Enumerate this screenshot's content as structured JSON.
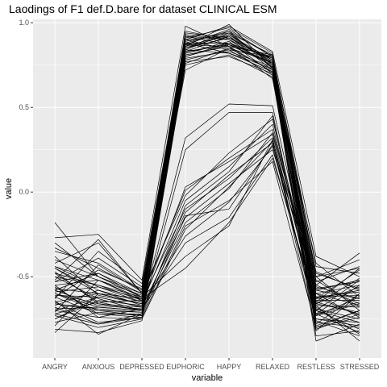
{
  "chart_data": {
    "type": "line",
    "title": "Laodings of F1 def.D.bare for dataset CLINICAL ESM",
    "xlabel": "variable",
    "ylabel": "value",
    "categories": [
      "ANGRY",
      "ANXIOUS",
      "DEPRESSED",
      "EUPHORIC",
      "HAPPY",
      "RELAXED",
      "RESTLESS",
      "STRESSED"
    ],
    "ylim": [
      -0.98,
      1.02
    ],
    "yticks": [
      -0.5,
      0.0,
      0.5,
      1.0
    ],
    "ytick_labels": [
      "-0.5",
      "0.0",
      "0.5",
      "1.0"
    ],
    "grid": true,
    "legend": "none",
    "colors": {
      "panel": "#ebebeb",
      "grid": "#ffffff",
      "line": "#000000"
    },
    "series": [
      {
        "values": [
          -0.18,
          -0.5,
          -0.62,
          0.85,
          0.93,
          0.78,
          -0.52,
          -0.68
        ]
      },
      {
        "values": [
          -0.27,
          -0.25,
          -0.52,
          0.98,
          0.86,
          0.67,
          -0.62,
          -0.73
        ]
      },
      {
        "values": [
          -0.33,
          -0.45,
          -0.58,
          0.92,
          0.9,
          0.74,
          -0.47,
          -0.58
        ]
      },
      {
        "values": [
          -0.38,
          -0.61,
          -0.66,
          0.88,
          0.95,
          0.8,
          -0.7,
          -0.81
        ]
      },
      {
        "values": [
          -0.42,
          -0.3,
          -0.6,
          0.84,
          0.82,
          0.71,
          -0.55,
          -0.36
        ]
      },
      {
        "values": [
          -0.47,
          -0.66,
          -0.7,
          0.91,
          0.97,
          0.82,
          -0.76,
          -0.85
        ]
      },
      {
        "values": [
          -0.5,
          -0.55,
          -0.64,
          0.8,
          0.88,
          0.76,
          -0.65,
          -0.45
        ]
      },
      {
        "values": [
          -0.53,
          -0.39,
          -0.56,
          0.86,
          0.99,
          0.73,
          -0.42,
          -0.62
        ]
      },
      {
        "values": [
          -0.56,
          -0.72,
          -0.72,
          0.78,
          0.84,
          0.69,
          -0.8,
          -0.74
        ]
      },
      {
        "values": [
          -0.58,
          -0.48,
          -0.62,
          0.94,
          0.91,
          0.79,
          -0.58,
          -0.52
        ]
      },
      {
        "values": [
          -0.61,
          -0.62,
          -0.68,
          0.83,
          0.87,
          0.75,
          -0.67,
          -0.88
        ]
      },
      {
        "values": [
          -0.63,
          -0.35,
          -0.54,
          0.89,
          0.94,
          0.81,
          -0.5,
          -0.4
        ]
      },
      {
        "values": [
          -0.65,
          -0.77,
          -0.74,
          0.76,
          0.85,
          0.72,
          -0.73,
          -0.66
        ]
      },
      {
        "values": [
          -0.67,
          -0.58,
          -0.65,
          0.9,
          0.92,
          0.77,
          -0.62,
          -0.59
        ]
      },
      {
        "values": [
          -0.69,
          -0.68,
          -0.7,
          0.82,
          0.89,
          0.7,
          -0.79,
          -0.7
        ]
      },
      {
        "values": [
          -0.71,
          -0.43,
          -0.59,
          0.87,
          0.96,
          0.8,
          -0.44,
          -0.48
        ]
      },
      {
        "values": [
          -0.73,
          -0.8,
          -0.75,
          0.79,
          0.83,
          0.74,
          -0.85,
          -0.82
        ]
      },
      {
        "values": [
          -0.75,
          -0.64,
          -0.67,
          0.93,
          0.9,
          0.78,
          -0.6,
          -0.55
        ]
      },
      {
        "values": [
          -0.77,
          -0.71,
          -0.73,
          0.81,
          0.86,
          0.71,
          -0.7,
          -0.77
        ]
      },
      {
        "values": [
          -0.79,
          -0.52,
          -0.63,
          0.86,
          0.93,
          0.76,
          -0.56,
          -0.63
        ]
      },
      {
        "values": [
          -0.81,
          -0.83,
          -0.76,
          0.75,
          0.81,
          0.68,
          -0.81,
          -0.72
        ]
      },
      {
        "values": [
          -0.83,
          -0.6,
          -0.66,
          0.88,
          0.88,
          0.79,
          -0.66,
          -0.51
        ]
      },
      {
        "values": [
          -0.44,
          -0.52,
          -0.61,
          0.85,
          0.95,
          0.73,
          -0.53,
          -0.44
        ]
      },
      {
        "values": [
          -0.55,
          -0.74,
          -0.69,
          0.8,
          0.87,
          0.76,
          -0.75,
          -0.79
        ]
      },
      {
        "values": [
          -0.62,
          -0.46,
          -0.57,
          0.9,
          0.84,
          0.8,
          -0.48,
          -0.57
        ]
      },
      {
        "values": [
          -0.48,
          -0.65,
          -0.64,
          0.83,
          0.92,
          0.72,
          -0.69,
          -0.75
        ]
      },
      {
        "values": [
          -0.59,
          -0.56,
          -0.63,
          0.72,
          0.85,
          0.77,
          -0.6,
          -0.67
        ]
      },
      {
        "values": [
          -0.66,
          -0.7,
          -0.71,
          0.95,
          0.9,
          0.74,
          -0.78,
          -0.6
        ]
      },
      {
        "values": [
          -0.35,
          -0.42,
          -0.58,
          0.87,
          0.86,
          0.81,
          -0.5,
          -0.7
        ]
      },
      {
        "values": [
          -0.72,
          -0.78,
          -0.74,
          0.84,
          0.94,
          0.75,
          -0.64,
          -0.64
        ]
      },
      {
        "values": [
          -0.3,
          -0.5,
          -0.6,
          0.82,
          0.88,
          0.79,
          -0.57,
          -0.53
        ]
      },
      {
        "values": [
          -0.7,
          -0.62,
          -0.68,
          0.88,
          0.82,
          0.73,
          -0.72,
          -0.83
        ]
      },
      {
        "values": [
          -0.52,
          -0.28,
          -0.6,
          0.9,
          0.98,
          0.83,
          -0.38,
          -0.5
        ]
      },
      {
        "values": [
          -0.64,
          -0.84,
          -0.72,
          0.77,
          0.8,
          0.7,
          -0.88,
          -0.78
        ]
      },
      {
        "values": [
          -0.45,
          -0.6,
          -0.66,
          0.85,
          0.91,
          0.77,
          -0.63,
          -0.46
        ]
      },
      {
        "values": [
          -0.6,
          -0.68,
          -0.7,
          0.92,
          0.87,
          0.8,
          -0.66,
          -0.71
        ]
      },
      {
        "values": [
          -0.4,
          -0.5,
          -0.62,
          -0.38,
          -0.2,
          0.31,
          -0.65,
          -0.72
        ]
      },
      {
        "values": [
          -0.45,
          -0.58,
          -0.67,
          -0.26,
          -0.06,
          0.27,
          -0.72,
          -0.55
        ]
      },
      {
        "values": [
          -0.5,
          -0.63,
          -0.7,
          -0.18,
          0.02,
          0.35,
          -0.58,
          -0.63
        ]
      },
      {
        "values": [
          -0.55,
          -0.52,
          -0.64,
          -0.1,
          0.08,
          0.32,
          -0.77,
          -0.8
        ]
      },
      {
        "values": [
          -0.6,
          -0.7,
          -0.73,
          -0.14,
          -0.1,
          0.28,
          -0.5,
          -0.45
        ]
      },
      {
        "values": [
          -0.65,
          -0.6,
          -0.66,
          -0.05,
          0.15,
          0.4,
          -0.67,
          -0.68
        ]
      },
      {
        "values": [
          -0.7,
          -0.74,
          -0.75,
          -0.22,
          0.03,
          0.3,
          -0.82,
          -0.6
        ]
      },
      {
        "values": [
          -0.48,
          -0.55,
          -0.62,
          0.01,
          0.2,
          0.37,
          -0.6,
          -0.74
        ]
      },
      {
        "values": [
          -0.58,
          -0.67,
          -0.69,
          -0.3,
          -0.15,
          0.22,
          -0.7,
          -0.52
        ]
      },
      {
        "values": [
          -0.68,
          -0.78,
          -0.72,
          -0.08,
          0.12,
          0.45,
          -0.75,
          -0.77
        ]
      },
      {
        "values": [
          -0.75,
          -0.62,
          -0.68,
          -0.15,
          0.05,
          0.25,
          -0.55,
          -0.66
        ]
      },
      {
        "values": [
          -0.53,
          -0.48,
          -0.6,
          -0.02,
          0.23,
          0.43,
          -0.63,
          -0.58
        ]
      },
      {
        "values": [
          -0.62,
          -0.72,
          -0.74,
          -0.2,
          -0.05,
          0.18,
          -0.8,
          -0.7
        ]
      },
      {
        "values": [
          -0.44,
          -0.56,
          -0.65,
          0.03,
          0.18,
          0.34,
          -0.68,
          -0.84
        ]
      },
      {
        "values": [
          -0.72,
          -0.65,
          -0.7,
          -0.12,
          0.1,
          0.29,
          -0.73,
          -0.62
        ]
      },
      {
        "values": [
          -0.57,
          -0.6,
          -0.63,
          -0.45,
          -0.18,
          0.2,
          -0.66,
          -0.56
        ]
      },
      {
        "values": [
          -0.66,
          -0.69,
          -0.71,
          0.25,
          0.47,
          0.47,
          -0.72,
          -0.65
        ]
      },
      {
        "values": [
          -0.6,
          -0.66,
          -0.68,
          0.32,
          0.52,
          0.51,
          -0.62,
          -0.61
        ]
      }
    ]
  }
}
